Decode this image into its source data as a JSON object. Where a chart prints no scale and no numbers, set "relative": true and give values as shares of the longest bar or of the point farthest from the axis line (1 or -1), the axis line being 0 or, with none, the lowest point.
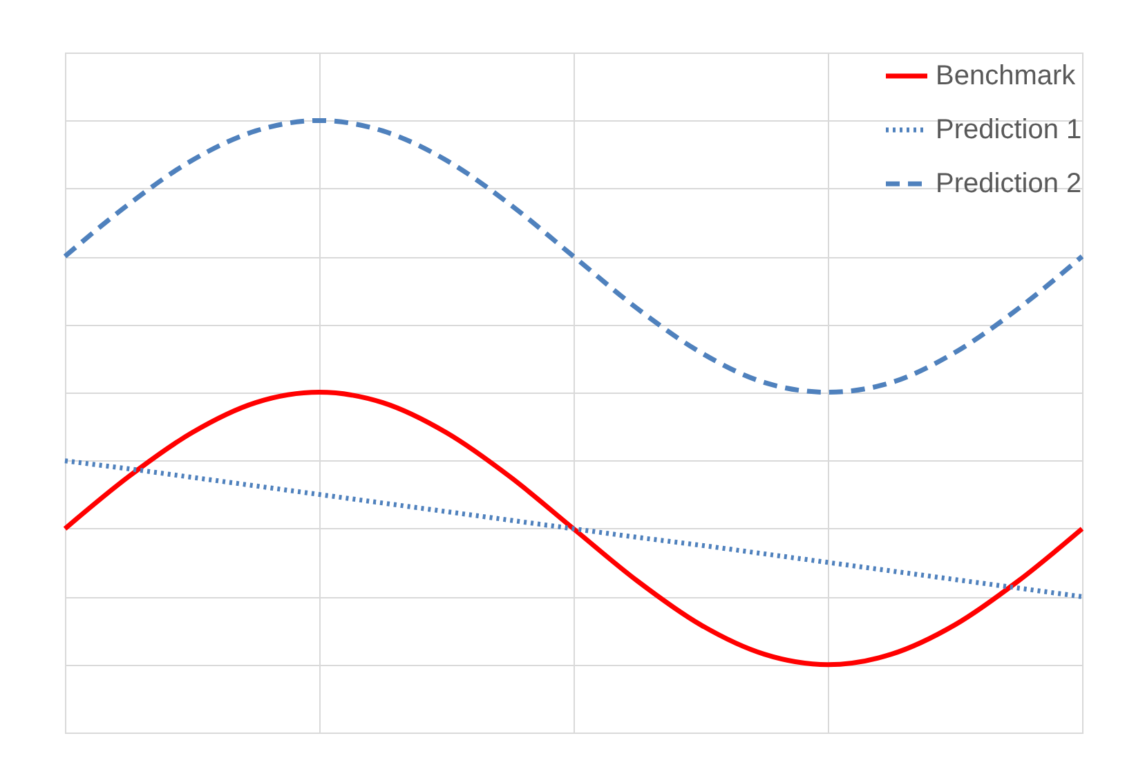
{
  "chart_data": {
    "type": "line",
    "relative": true,
    "grid": true,
    "legend": "top right",
    "categories": [
      null,
      null,
      null,
      null,
      null,
      null,
      null,
      null,
      null,
      null,
      null,
      null,
      null,
      null,
      null,
      null,
      null
    ],
    "series": [
      {
        "name": "Benchmark",
        "color": "#ff0000",
        "line_style": "solid",
        "values": [
          0.333,
          0.418,
          0.49,
          0.539,
          0.556,
          0.539,
          0.49,
          0.418,
          0.333,
          0.248,
          0.176,
          0.128,
          0.111,
          0.128,
          0.176,
          0.248,
          0.333
        ]
      },
      {
        "name": "Prediction 1",
        "color": "#4f81bd",
        "line_style": "dotted",
        "values": [
          0.444,
          0.431,
          0.417,
          0.403,
          0.389,
          0.375,
          0.361,
          0.347,
          0.333,
          0.319,
          0.306,
          0.292,
          0.278,
          0.264,
          0.25,
          0.236,
          0.222
        ]
      },
      {
        "name": "Prediction 2",
        "color": "#4f81bd",
        "line_style": "dashed",
        "values": [
          0.778,
          0.863,
          0.935,
          0.983,
          1,
          0.983,
          0.935,
          0.863,
          0.778,
          0.693,
          0.621,
          0.572,
          0.556,
          0.572,
          0.621,
          0.693,
          0.778
        ]
      }
    ]
  }
}
